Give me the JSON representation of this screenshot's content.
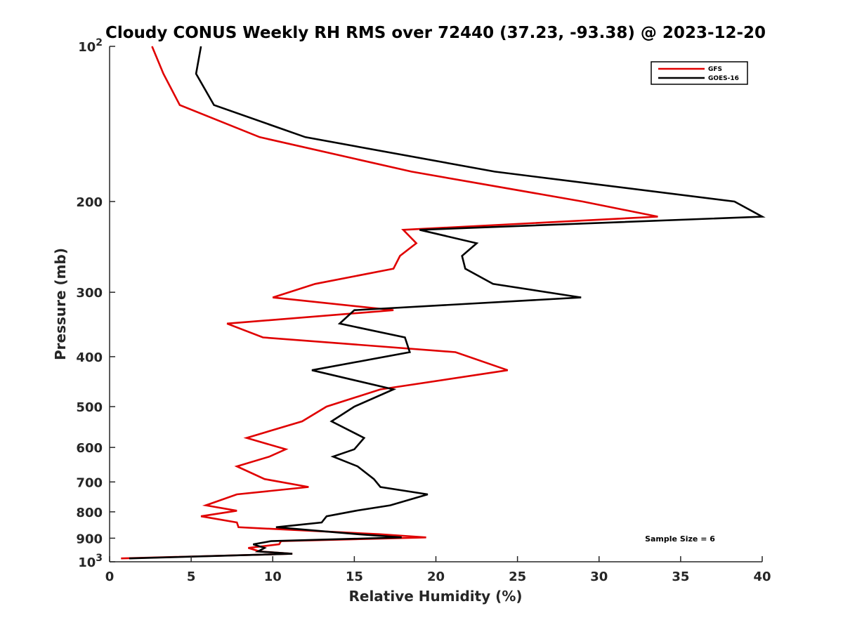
{
  "chart_data": {
    "type": "line",
    "title": "Cloudy CONUS Weekly RH RMS over 72440 (37.23, -93.38) @ 2023-12-20",
    "xlabel": "Relative Humidity (%)",
    "ylabel": "Pressure (mb)",
    "xlim": [
      0,
      40
    ],
    "ylim": [
      100,
      1000
    ],
    "y_scale": "log",
    "y_reversed": true,
    "grid": false,
    "legend_position": "top-right",
    "x_ticks": [
      0,
      5,
      10,
      15,
      20,
      25,
      30,
      35,
      40
    ],
    "x_tick_labels": [
      "0",
      "5",
      "10",
      "15",
      "20",
      "25",
      "30",
      "35",
      "40"
    ],
    "y_ticks": [
      100,
      200,
      300,
      400,
      500,
      600,
      700,
      800,
      900,
      1000
    ],
    "y_tick_labels": [
      {
        "base": "10",
        "exp": "2"
      },
      {
        "base": "200",
        "exp": ""
      },
      {
        "base": "300",
        "exp": ""
      },
      {
        "base": "400",
        "exp": ""
      },
      {
        "base": "500",
        "exp": ""
      },
      {
        "base": "600",
        "exp": ""
      },
      {
        "base": "700",
        "exp": ""
      },
      {
        "base": "800",
        "exp": ""
      },
      {
        "base": "900",
        "exp": ""
      },
      {
        "base": "10",
        "exp": "3"
      }
    ],
    "annotation": "Sample Size = 6",
    "series": [
      {
        "name": "GFS",
        "color": "#e00000",
        "x": [
          2.6,
          3.3,
          4.3,
          9.2,
          18.5,
          29.0,
          33.6,
          18.0,
          18.8,
          17.8,
          17.4,
          12.6,
          10.0,
          17.4,
          7.2,
          9.4,
          21.2,
          24.4,
          16.6,
          13.3,
          11.8,
          8.4,
          10.8,
          9.8,
          7.8,
          9.5,
          12.2,
          7.8,
          5.9,
          7.8,
          5.6,
          7.8,
          7.9,
          16.5,
          19.4,
          10.5,
          10.4,
          8.5,
          9.2,
          11.2,
          0.7
        ],
        "y": [
          100,
          113,
          130,
          150,
          175,
          200,
          214,
          227,
          241,
          255,
          270,
          289,
          307,
          325,
          345,
          367,
          392,
          425,
          463,
          500,
          534,
          575,
          605,
          625,
          653,
          691,
          716,
          740,
          777,
          796,
          816,
          839,
          857,
          884,
          897,
          912,
          925,
          940,
          955,
          965,
          985
        ]
      },
      {
        "name": "GOES-16",
        "color": "#000000",
        "x": [
          5.6,
          5.3,
          6.4,
          12.0,
          23.6,
          38.3,
          40.0,
          19.0,
          22.5,
          21.6,
          21.8,
          23.5,
          28.9,
          15.0,
          14.1,
          18.1,
          18.4,
          12.4,
          17.4,
          15.0,
          13.6,
          15.6,
          15.0,
          13.7,
          15.2,
          16.2,
          16.6,
          19.5,
          17.2,
          15.1,
          13.3,
          13.0,
          10.2,
          15.2,
          17.9,
          9.9,
          8.8,
          9.5,
          9.1,
          11.2,
          1.2
        ],
        "y": [
          100,
          113,
          130,
          150,
          175,
          200,
          214,
          227,
          241,
          255,
          270,
          289,
          307,
          325,
          345,
          367,
          392,
          425,
          463,
          500,
          534,
          575,
          605,
          625,
          653,
          691,
          716,
          740,
          777,
          796,
          816,
          839,
          857,
          884,
          897,
          912,
          925,
          940,
          955,
          965,
          985
        ]
      }
    ]
  }
}
